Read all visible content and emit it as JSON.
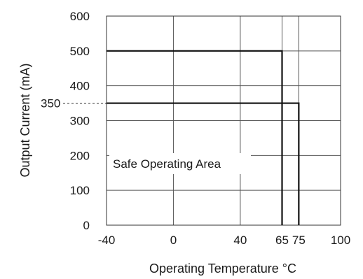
{
  "chart_data": {
    "type": "line",
    "title": "",
    "xlabel": "Operating Temperature °C",
    "ylabel": "Output Current (mA)",
    "xlim": [
      -40,
      100
    ],
    "ylim": [
      0,
      600
    ],
    "x_ticks": [
      -40,
      0,
      40,
      65,
      75,
      100
    ],
    "y_ticks": [
      0,
      100,
      200,
      300,
      400,
      500,
      600
    ],
    "grid": true,
    "series": [
      {
        "points": [
          [
            -40,
            500
          ],
          [
            65,
            500
          ],
          [
            65,
            0
          ]
        ]
      },
      {
        "points": [
          [
            -40,
            350
          ],
          [
            75,
            350
          ],
          [
            75,
            0
          ]
        ]
      }
    ],
    "reference_line": {
      "y": 350,
      "label": "350",
      "style": "dashed"
    },
    "annotation": "Safe Operating Area"
  }
}
